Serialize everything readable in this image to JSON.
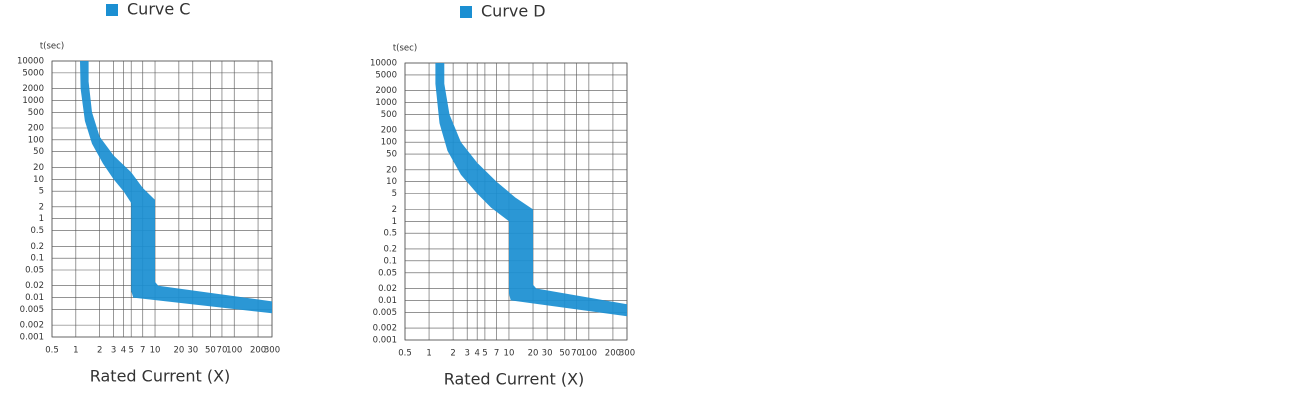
{
  "chart_data": [
    {
      "type": "band",
      "title": "Curve C",
      "y_label": "t(sec)",
      "x_label": "Rated Current (X)",
      "color": "#1b8fd2",
      "xscale": "log",
      "yscale": "log",
      "grid": true,
      "xlim": [
        0.5,
        300
      ],
      "xticks": [
        0.5,
        1,
        2,
        3,
        4,
        5,
        7,
        10,
        20,
        30,
        50,
        70,
        100,
        200,
        300
      ],
      "ylim": [
        0.001,
        10000
      ],
      "yticks": [
        10000,
        5000,
        2000,
        1000,
        500,
        200,
        100,
        50,
        20,
        10,
        5,
        2,
        1,
        0.5,
        0.2,
        0.1,
        0.05,
        0.02,
        0.01,
        0.005,
        0.002,
        0.001
      ],
      "series": [
        {
          "x": [
            1.13,
            1.15,
            1.3,
            1.6,
            2.2,
            3,
            4,
            5,
            5,
            5.3,
            300
          ],
          "values": [
            10000,
            2000,
            300,
            80,
            25,
            10,
            5,
            2.5,
            0.015,
            0.01,
            0.004
          ]
        },
        {
          "x": [
            1.45,
            1.45,
            1.6,
            2,
            3,
            5,
            7,
            10,
            10,
            11,
            300
          ],
          "values": [
            10000,
            3000,
            500,
            120,
            40,
            15,
            6,
            3,
            0.025,
            0.02,
            0.008
          ]
        }
      ]
    },
    {
      "type": "band",
      "title": "Curve D",
      "y_label": "t(sec)",
      "x_label": "Rated Current (X)",
      "color": "#1b8fd2",
      "xscale": "log",
      "yscale": "log",
      "grid": true,
      "xlim": [
        0.5,
        300
      ],
      "xticks": [
        0.5,
        1,
        2,
        3,
        4,
        5,
        7,
        10,
        20,
        30,
        50,
        70,
        100,
        200,
        300
      ],
      "ylim": [
        0.001,
        10000
      ],
      "yticks": [
        10000,
        5000,
        2000,
        1000,
        500,
        200,
        100,
        50,
        20,
        10,
        5,
        2,
        1,
        0.5,
        0.2,
        0.1,
        0.05,
        0.02,
        0.01,
        0.005,
        0.002,
        0.001
      ],
      "series": [
        {
          "x": [
            1.2,
            1.2,
            1.35,
            1.7,
            2.5,
            4,
            6,
            10,
            10,
            10.5,
            300
          ],
          "values": [
            10000,
            3000,
            300,
            60,
            15,
            5,
            2.2,
            1,
            0.015,
            0.01,
            0.004
          ]
        },
        {
          "x": [
            1.55,
            1.55,
            1.8,
            2.5,
            4,
            7,
            12,
            20,
            20,
            22,
            300
          ],
          "values": [
            10000,
            3000,
            500,
            100,
            30,
            10,
            4,
            2,
            0.025,
            0.02,
            0.008
          ]
        }
      ]
    }
  ]
}
